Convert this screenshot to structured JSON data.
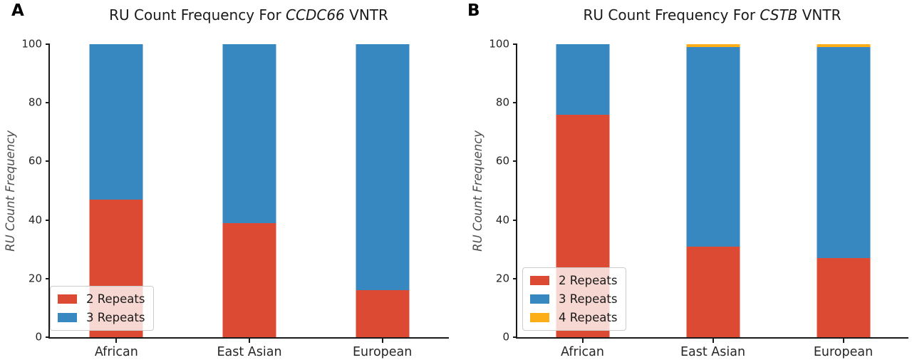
{
  "chart_data": [
    {
      "type": "bar",
      "subtype": "stacked-vertical",
      "panel_label": "A",
      "title_prefix": "RU Count Frequency For ",
      "gene": "CCDC66",
      "title_suffix": " VNTR",
      "title_full": "RU Count Frequency For CCDC66 VNTR",
      "ylabel": "RU Count Frequency",
      "xlabel": "",
      "categories": [
        "African",
        "East Asian",
        "European"
      ],
      "series": [
        {
          "name": "2 Repeats",
          "color": "#DC4A33",
          "values": [
            47,
            39,
            16
          ]
        },
        {
          "name": "3 Repeats",
          "color": "#3787C1",
          "values": [
            53,
            61,
            84
          ]
        }
      ],
      "ylim": [
        0,
        100
      ],
      "yticks": [
        0,
        20,
        40,
        60,
        80,
        100
      ],
      "grid": false,
      "legend_position": "lower left"
    },
    {
      "type": "bar",
      "subtype": "stacked-vertical",
      "panel_label": "B",
      "title_prefix": "RU Count Frequency For ",
      "gene": "CSTB",
      "title_suffix": " VNTR",
      "title_full": "RU Count Frequency For CSTB VNTR",
      "ylabel": "RU Count Frequency",
      "xlabel": "",
      "categories": [
        "African",
        "East Asian",
        "European"
      ],
      "series": [
        {
          "name": "2 Repeats",
          "color": "#DC4A33",
          "values": [
            76,
            31,
            27
          ]
        },
        {
          "name": "3 Repeats",
          "color": "#3787C1",
          "values": [
            24,
            68,
            72
          ]
        },
        {
          "name": "4 Repeats",
          "color": "#FBAE17",
          "values": [
            0,
            1,
            1
          ]
        }
      ],
      "ylim": [
        0,
        100
      ],
      "yticks": [
        0,
        20,
        40,
        60,
        80,
        100
      ],
      "grid": false,
      "legend_position": "lower left"
    }
  ]
}
